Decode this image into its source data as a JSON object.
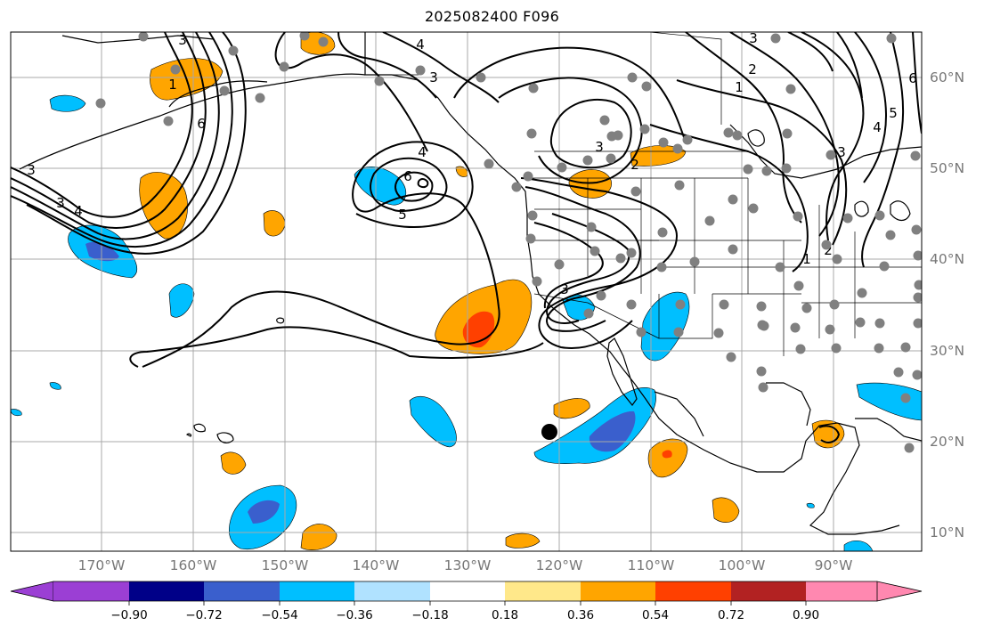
{
  "title": "2025082400 F096",
  "lon_labels": [
    "170°W",
    "160°W",
    "150°W",
    "140°W",
    "130°W",
    "120°W",
    "110°W",
    "100°W",
    "90°W"
  ],
  "lat_labels": [
    "60°N",
    "50°N",
    "40°N",
    "30°N",
    "20°N",
    "10°N"
  ],
  "colorbar": {
    "tick_labels": [
      "−0.90",
      "−0.72",
      "−0.54",
      "−0.36",
      "−0.18",
      "0.18",
      "0.36",
      "0.54",
      "0.72",
      "0.90"
    ],
    "colors": [
      "#9b3fd4",
      "#000088",
      "#3a5fcd",
      "#00bfff",
      "#b0e2ff",
      "#ffffff",
      "#ffe88a",
      "#ffa500",
      "#ff4000",
      "#b22222",
      "#ff88b0"
    ]
  },
  "contour_labels": [
    "3",
    "3",
    "4",
    "6",
    "5",
    "4",
    "3",
    "6",
    "3",
    "4",
    "1",
    "2",
    "3",
    "2",
    "1",
    "3",
    "4",
    "5",
    "6",
    "3",
    "1",
    "2",
    "3"
  ],
  "marker_colors": {
    "station": "#808080",
    "storm_center": "#000000"
  }
}
